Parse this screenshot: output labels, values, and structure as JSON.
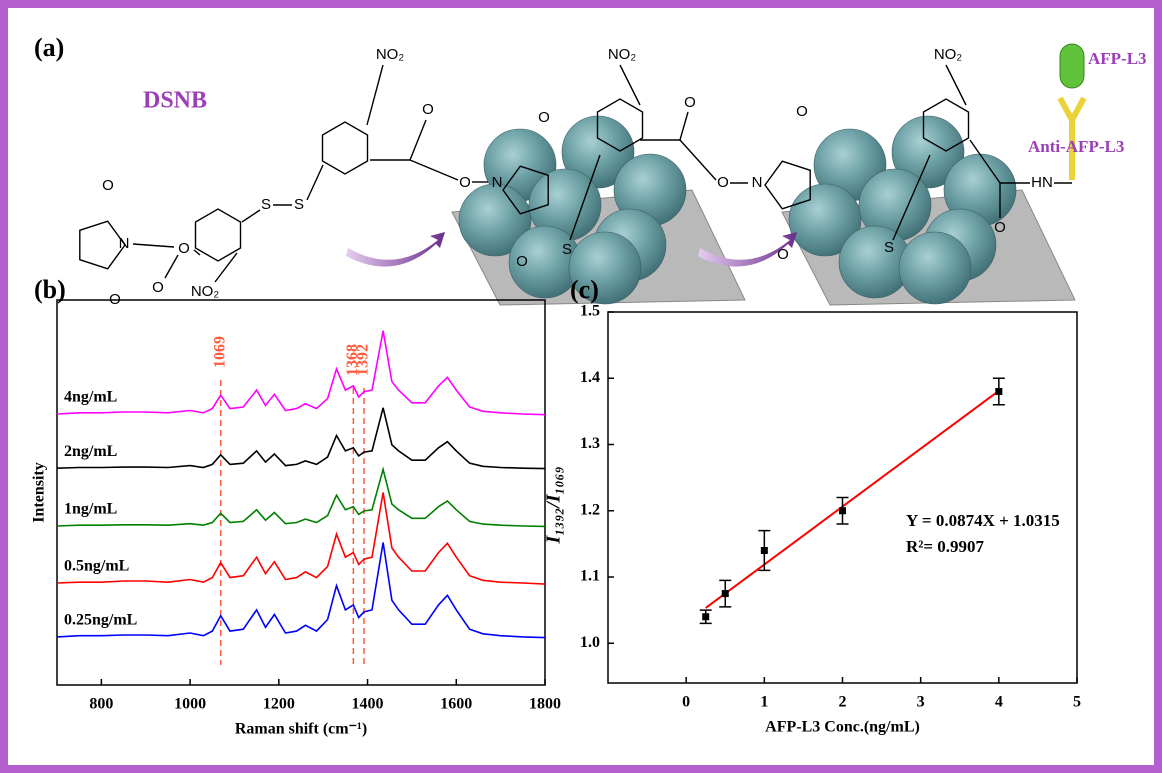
{
  "panel_a": {
    "label": "(a)",
    "compound": "DSNB",
    "atoms": [
      "O",
      "N",
      "O",
      "O",
      "O",
      "NO₂",
      "S",
      "S",
      "NO₂",
      "O",
      "O",
      "N",
      "O",
      "O",
      "NO₂",
      "S",
      "O",
      "O",
      "N",
      "O",
      "O",
      "NO₂",
      "S",
      "O",
      "HN"
    ],
    "antigen": "AFP-L3",
    "antibody": "Anti-AFP-L3"
  },
  "chart_data": [
    {
      "type": "line",
      "panel_label": "(b)",
      "xlabel": "Raman shift (cm⁻¹)",
      "ylabel": "Intensity",
      "xlim": [
        700,
        1800
      ],
      "xticks": [
        800,
        1000,
        1200,
        1400,
        1600,
        1800
      ],
      "ylim": [
        0,
        100
      ],
      "peak_lines": [
        1069,
        1368,
        1392
      ],
      "peak_color": "#ff5a3c",
      "x": [
        700,
        750,
        800,
        850,
        900,
        950,
        1000,
        1030,
        1050,
        1069,
        1090,
        1120,
        1150,
        1170,
        1190,
        1215,
        1240,
        1260,
        1285,
        1310,
        1330,
        1350,
        1368,
        1380,
        1392,
        1410,
        1435,
        1455,
        1470,
        1500,
        1530,
        1560,
        1580,
        1600,
        1630,
        1660,
        1700,
        1750,
        1800
      ],
      "series": [
        {
          "name": "4ng/mL",
          "color": "#ff00ff",
          "values": [
            70.4,
            70.7,
            70.7,
            70.9,
            70.9,
            70.7,
            71.3,
            70.7,
            71.8,
            75.3,
            71.8,
            72.2,
            76.6,
            72.6,
            75.5,
            71.3,
            71.8,
            73.1,
            71.8,
            74.4,
            82.1,
            76.6,
            77.7,
            74.8,
            76.2,
            76.6,
            92,
            78.8,
            76.6,
            73.3,
            73.3,
            77.7,
            79.9,
            76.6,
            72.2,
            71.1,
            70.7,
            70.4,
            70.2
          ]
        },
        {
          "name": "2ng/mL",
          "color": "#000000",
          "values": [
            56.3,
            56.5,
            56.5,
            56.6,
            56.6,
            56.5,
            57,
            56.5,
            57.3,
            59.8,
            57.3,
            57.6,
            60.8,
            57.9,
            60,
            57,
            57.3,
            58.2,
            57.3,
            59.2,
            64.8,
            60.8,
            61.6,
            59.5,
            60.5,
            60.8,
            72,
            62.4,
            60.8,
            58.4,
            58.4,
            61.6,
            63.2,
            60.8,
            57.6,
            56.8,
            56.5,
            56.3,
            56.2
          ]
        },
        {
          "name": "1ng/mL",
          "color": "#008000",
          "values": [
            41.3,
            41.5,
            41.5,
            41.6,
            41.6,
            41.5,
            41.9,
            41.5,
            42.2,
            44.6,
            42.2,
            42.5,
            45.5,
            42.8,
            44.8,
            41.9,
            42.2,
            43.1,
            42.2,
            44,
            49.3,
            45.5,
            46.3,
            44.3,
            45.2,
            45.5,
            56,
            47,
            45.5,
            43.3,
            43.3,
            46.3,
            47.8,
            45.5,
            42.5,
            41.8,
            41.5,
            41.3,
            41.2
          ]
        },
        {
          "name": "0.5ng/mL",
          "color": "#ff0000",
          "values": [
            26.5,
            26.7,
            26.7,
            27,
            27,
            26.7,
            27.4,
            26.7,
            27.9,
            31.8,
            27.9,
            28.4,
            33.2,
            28.9,
            32,
            27.4,
            27.9,
            29.4,
            27.9,
            30.8,
            39.2,
            33.2,
            34.4,
            31.3,
            32.7,
            33.2,
            50,
            35.6,
            33.2,
            29.6,
            29.6,
            34.4,
            36.8,
            33.2,
            28.4,
            27.2,
            26.7,
            26.5,
            26.2
          ]
        },
        {
          "name": "0.25ng/mL",
          "color": "#0000ff",
          "values": [
            12.5,
            12.8,
            12.8,
            13,
            13,
            12.8,
            13.5,
            12.8,
            14,
            18,
            14,
            14.5,
            19.5,
            15,
            18.3,
            13.5,
            14,
            15.5,
            14,
            17,
            25.8,
            19.5,
            20.8,
            17.5,
            19,
            19.5,
            37,
            22,
            19.5,
            15.8,
            15.8,
            20.8,
            23.3,
            19.5,
            14.5,
            13.3,
            12.8,
            12.5,
            12.3
          ]
        }
      ]
    },
    {
      "type": "scatter",
      "panel_label": "(c)",
      "xlabel": "AFP-L3 Conc.(ng/mL)",
      "ylabel": "I₁₃₉₂/I₁₀₆₉",
      "xlim": [
        -1,
        5
      ],
      "xticks": [
        0,
        1,
        2,
        3,
        4,
        5
      ],
      "ylim": [
        0.94,
        1.5
      ],
      "yticks": [
        {
          "value": 1,
          "label": "1.0"
        },
        1.1,
        1.2,
        1.3,
        1.4,
        1.5
      ],
      "x": [
        0.25,
        0.5,
        1,
        2,
        4
      ],
      "values": [
        1.04,
        1.075,
        1.14,
        1.2,
        1.38
      ],
      "errors": [
        0.01,
        0.02,
        0.03,
        0.02,
        0.02
      ],
      "color": "#000000",
      "fit_color": "#ff0000",
      "fit": {
        "equation": "Y = 0.0874X + 1.0315",
        "slope": 0.0874,
        "intercept": 1.0315,
        "r2_label": "R²= 0.9907"
      }
    }
  ]
}
